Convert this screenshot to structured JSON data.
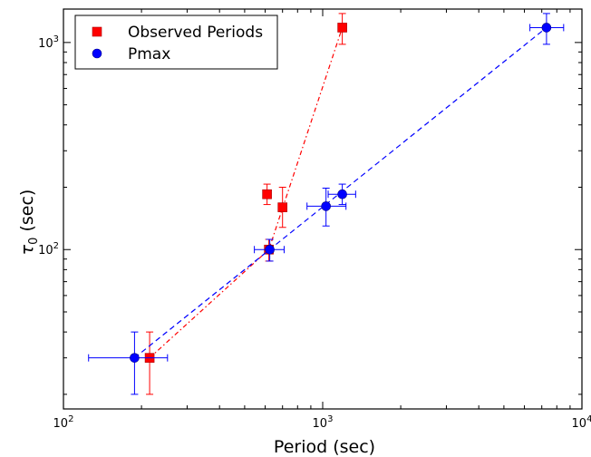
{
  "chart_data": {
    "type": "scatter",
    "xlabel": "Period (sec)",
    "ylabel_symbol": "τ",
    "ylabel_subscript": "0",
    "ylabel_unit": " (sec)",
    "x_scale": "log",
    "y_scale": "log",
    "xlim": [
      100,
      10000
    ],
    "ylim": [
      17,
      1450
    ],
    "x_ticks": [
      {
        "value": 100,
        "base": "10",
        "exp": "2"
      },
      {
        "value": 1000,
        "base": "10",
        "exp": "3"
      },
      {
        "value": 10000,
        "base": "10",
        "exp": "4"
      }
    ],
    "y_ticks": [
      {
        "value": 100,
        "base": "10",
        "exp": "2"
      },
      {
        "value": 1000,
        "base": "10",
        "exp": "3"
      }
    ],
    "grid": false,
    "legend_position": "top-left",
    "series": [
      {
        "name": "Observed Periods",
        "color": "#ff0000",
        "marker": "square",
        "line_style": "dash-dot",
        "points": [
          {
            "x": 215,
            "y": 30,
            "yerr_lo": 20,
            "yerr_hi": 40
          },
          {
            "x": 620,
            "y": 100,
            "yerr_lo": 88,
            "yerr_hi": 112
          },
          {
            "x": 610,
            "y": 185,
            "yerr_lo": 165,
            "yerr_hi": 207
          },
          {
            "x": 700,
            "y": 160,
            "yerr_lo": 128,
            "yerr_hi": 200
          },
          {
            "x": 1190,
            "y": 1180,
            "yerr_lo": 980,
            "yerr_hi": 1380
          }
        ],
        "line": [
          {
            "x": 215,
            "y": 30
          },
          {
            "x": 620,
            "y": 100
          },
          {
            "x": 1190,
            "y": 1180
          }
        ]
      },
      {
        "name": "Pmax",
        "color": "#0000ff",
        "marker": "circle",
        "line_style": "dashed",
        "points": [
          {
            "x": 188,
            "y": 30,
            "yerr_lo": 20,
            "yerr_hi": 40,
            "xerr_lo": 125,
            "xerr_hi": 252
          },
          {
            "x": 625,
            "y": 100,
            "yerr_lo": 88,
            "yerr_hi": 112,
            "xerr_lo": 545,
            "xerr_hi": 710
          },
          {
            "x": 1030,
            "y": 162,
            "yerr_lo": 130,
            "yerr_hi": 198,
            "xerr_lo": 870,
            "xerr_hi": 1230
          },
          {
            "x": 1190,
            "y": 185,
            "yerr_lo": 165,
            "yerr_hi": 207,
            "xerr_lo": 1050,
            "xerr_hi": 1340
          },
          {
            "x": 7300,
            "y": 1180,
            "yerr_lo": 980,
            "yerr_hi": 1380,
            "xerr_lo": 6300,
            "xerr_hi": 8500
          }
        ],
        "line": [
          {
            "x": 188,
            "y": 30
          },
          {
            "x": 7300,
            "y": 1180
          }
        ]
      }
    ]
  }
}
